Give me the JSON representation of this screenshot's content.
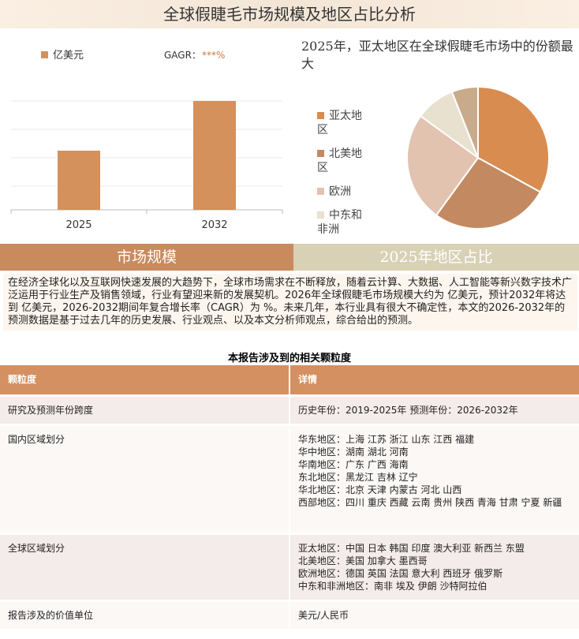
{
  "title": "全球假睫毛市场规模及地区占比分析",
  "chart_data": [
    {
      "type": "bar",
      "categories": [
        "2025",
        "2032"
      ],
      "series": [
        {
          "name": "亿美元",
          "color": "#d4915c",
          "values": [
            75,
            138
          ]
        }
      ],
      "annotations": [
        "GAGR：",
        "***%"
      ],
      "annotation_color": "#c9783c",
      "grid": true
    },
    {
      "type": "pie",
      "title": "2025年，亚太地区在全球假睫毛市场中的份额最大",
      "categories": [
        "亚太地区",
        "北美地区",
        "欧洲",
        "中东和非洲",
        null
      ],
      "values": [
        33,
        27,
        25,
        9,
        6
      ],
      "colors": [
        "#d98c50",
        "#c38a62",
        "#e2c3b0",
        "#e9e1cf",
        "#c9ab8c"
      ]
    }
  ],
  "sections": [
    "市场规模",
    "2025年地区占比"
  ],
  "paragraph": "在经济全球化以及互联网快速发展的大趋势下，全球市场需求在不断释放，随着云计算、大数据、人工智能等新兴数字技术广泛运用于行业生产及销售领域，行业有望迎来新的发展契机。2026年全球假睫毛市场规模大约为 亿美元，预计2032年将达到 亿美元，2026-2032期间年复合增长率（CAGR）为 %。未来几年，本行业具有很大不确定性，本文的2026-2032年的预测数据是基于过去几年的历史发展、行业观点、以及本文分析师观点，综合给出的预测。",
  "table": {
    "title": "本报告涉及到的相关颗粒度",
    "header": [
      "颗粒度",
      "详情"
    ],
    "rows": [
      [
        "研究及预测年份跨度",
        [
          "历史年份：2019-2025年 预测年份：2026-2032年"
        ]
      ],
      [
        "国内区域划分",
        [
          "华东地区：上海 江苏 浙江 山东 江西 福建",
          "华中地区：湖南 湖北 河南",
          "华南地区：广东 广西 海南",
          "东北地区：黑龙江 吉林 辽宁",
          "华北地区：北京 天津 内蒙古 河北 山西",
          "西部地区：四川 重庆 西藏 云南 贵州 陕西 青海 甘肃 宁夏 新疆"
        ]
      ],
      [
        "全球区域划分",
        [
          "亚太地区：中国 日本 韩国 印度 澳大利亚 新西兰 东盟",
          "北美地区：美国 加拿大 墨西哥",
          "欧洲地区：德国 英国 法国 意大利 西班牙 俄罗斯",
          "中东和非洲地区：南非 埃及 伊朗 沙特阿拉伯"
        ]
      ],
      [
        "报告涉及的价值单位",
        [
          "美元/人民币"
        ]
      ]
    ]
  }
}
